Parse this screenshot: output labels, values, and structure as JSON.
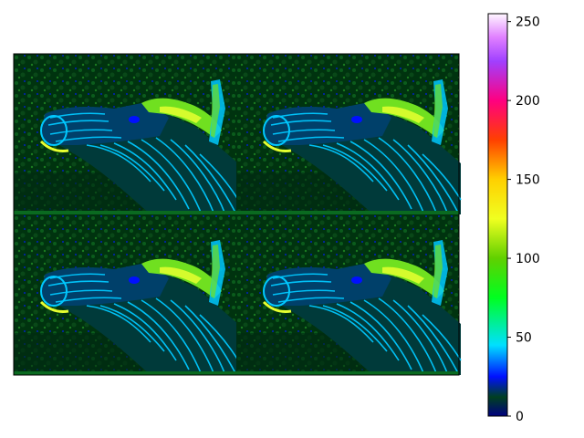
{
  "chart_data": {
    "type": "heatmap",
    "title": "",
    "xlabel": "",
    "ylabel": "",
    "description_panels": 4,
    "panel_content": "zebra head and neck, false-color intensity image tiled 2x2",
    "colormap": "gist_ncar",
    "clim": [
      0,
      255
    ],
    "colorbar": {
      "ticks": [
        0,
        50,
        100,
        150,
        200,
        250
      ],
      "tick_labels": [
        "0",
        "50",
        "100",
        "150",
        "200",
        "250"
      ]
    },
    "colormap_stops": [
      {
        "value": 0,
        "color": "#000080"
      },
      {
        "value": 12,
        "color": "#004020"
      },
      {
        "value": 25,
        "color": "#0010ff"
      },
      {
        "value": 45,
        "color": "#00e0ff"
      },
      {
        "value": 75,
        "color": "#00ff20"
      },
      {
        "value": 100,
        "color": "#60d000"
      },
      {
        "value": 125,
        "color": "#f0ff20"
      },
      {
        "value": 150,
        "color": "#ffd000"
      },
      {
        "value": 175,
        "color": "#ff4000"
      },
      {
        "value": 200,
        "color": "#ff0080"
      },
      {
        "value": 225,
        "color": "#a040ff"
      },
      {
        "value": 240,
        "color": "#e080ff"
      },
      {
        "value": 255,
        "color": "#fff8ff"
      }
    ]
  },
  "colors": {
    "background": "#003510",
    "foliage": "#0a5a1a",
    "stripe": "#00c8ff",
    "mane": "#70e020",
    "highlight": "#e6ff30"
  }
}
